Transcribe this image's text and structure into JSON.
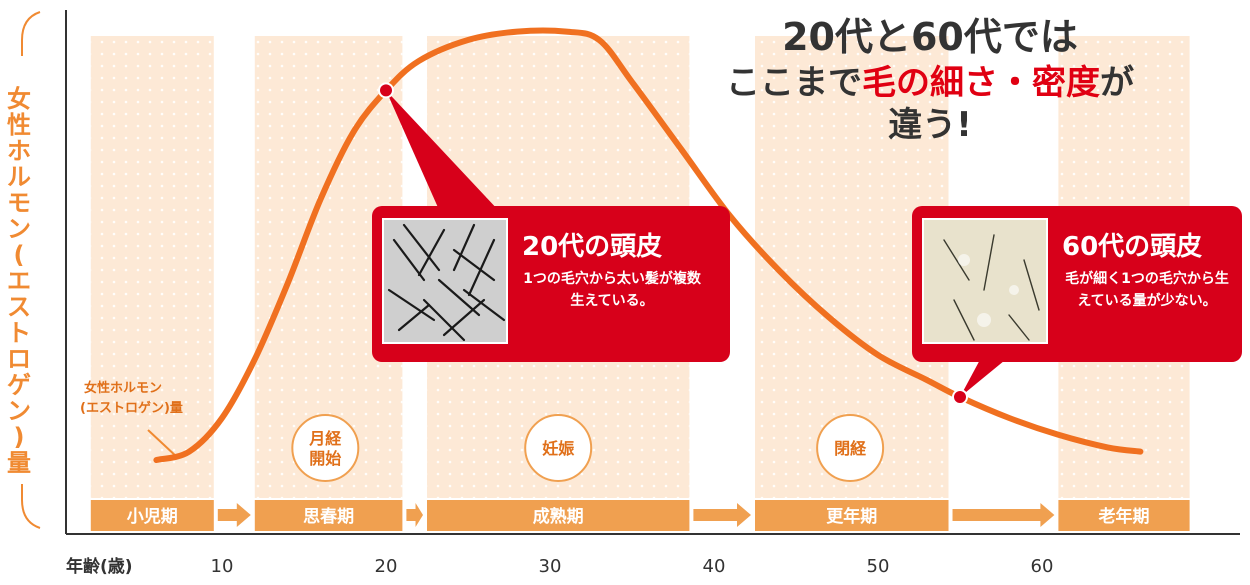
{
  "chart_data": {
    "type": "line",
    "title": "",
    "xlabel": "年齢(歳)",
    "ylabel": "女性ホルモン(エストロゲン)量",
    "xlim": [
      0,
      70
    ],
    "ylim": [
      0,
      100
    ],
    "x_ticks": [
      10,
      20,
      30,
      40,
      50,
      60
    ],
    "series": [
      {
        "name": "女性ホルモン(エストロゲン)量",
        "x": [
          6,
          8,
          10,
          12,
          14,
          16,
          18,
          20,
          22,
          25,
          28,
          31,
          33,
          35,
          38,
          41,
          44,
          47,
          50,
          53,
          55,
          58,
          61,
          64,
          66
        ],
        "y": [
          0,
          2,
          10,
          24,
          42,
          62,
          78,
          88,
          95,
          100,
          102,
          102,
          100,
          90,
          74,
          58,
          45,
          34,
          25,
          19,
          15,
          10,
          6,
          3,
          2
        ]
      }
    ],
    "highlighted_points": [
      {
        "x": 20,
        "y": 88
      },
      {
        "x": 55,
        "y": 15
      }
    ],
    "stages": [
      {
        "label": "小児期",
        "from": 2,
        "to": 9.5
      },
      {
        "label": "思春期",
        "from": 12,
        "to": 21
      },
      {
        "label": "成熟期",
        "from": 22.5,
        "to": 38.5
      },
      {
        "label": "更年期",
        "from": 42.5,
        "to": 54.3
      },
      {
        "label": "老年期",
        "from": 61,
        "to": 69
      }
    ],
    "events": [
      {
        "label": "月経開始",
        "x": 16.3
      },
      {
        "label": "妊娠",
        "x": 30.5
      },
      {
        "label": "閉経",
        "x": 48.3
      }
    ],
    "series_annotation": "女性ホルモン(エストロゲン)量",
    "grid": false
  },
  "headline": {
    "line1": "20代と60代では",
    "line2_pre": "ここまで",
    "line2_emph": "毛の細さ・密度",
    "line2_post": "が",
    "line3": "違う!"
  },
  "callouts": [
    {
      "title": "20代の頭皮",
      "body": "1つの毛穴から太い髪が複数生えている。"
    },
    {
      "title": "60代の頭皮",
      "body": "毛が細く1つの毛穴から生えている量が少ない。"
    }
  ],
  "colors": {
    "curve": "#f07020",
    "stage_bar": "#f0a050",
    "stage_band": "#fde9d6",
    "callout": "#d7001a",
    "axis_label": "#f08a32",
    "headline_emphasis": "#e00012"
  }
}
